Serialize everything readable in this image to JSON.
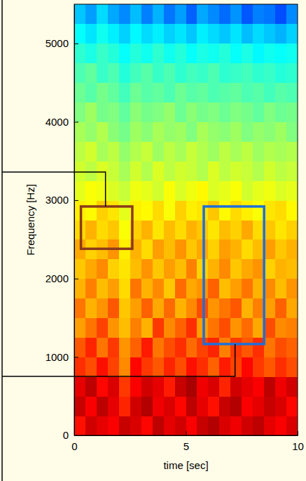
{
  "chart_data": {
    "type": "heatmap",
    "x_label": "time [sec]",
    "y_label": "Frequency [Hz]",
    "xlim": [
      0,
      10
    ],
    "ylim": [
      0,
      5500
    ],
    "xticks": [
      0,
      5,
      10
    ],
    "yticks": [
      0,
      1000,
      2000,
      3000,
      4000,
      5000
    ],
    "clim": [
      0,
      10
    ],
    "x_bins": [
      0,
      0.5,
      1,
      1.5,
      2,
      2.5,
      3,
      3.5,
      4,
      4.5,
      5,
      5.5,
      6,
      6.5,
      7,
      7.5,
      8,
      8.5,
      9,
      9.5,
      10
    ],
    "y_bins": [
      0,
      250,
      500,
      750,
      1000,
      1250,
      1500,
      1750,
      2000,
      2250,
      2500,
      2750,
      3000,
      3250,
      3500,
      3750,
      4000,
      4250,
      4500,
      4750,
      5000,
      5250,
      5500
    ],
    "cells": [
      [
        8.6,
        9.2,
        9.0,
        8.8,
        9.3,
        9.1,
        8.7,
        9.4,
        9.0,
        9.2,
        8.8,
        9.3,
        9.5,
        9.1,
        8.9,
        9.2,
        9.4,
        9.0,
        8.8,
        9.1
      ],
      [
        9.3,
        8.8,
        9.4,
        9.0,
        8.4,
        9.2,
        9.5,
        8.9,
        9.1,
        8.7,
        9.4,
        9.0,
        8.6,
        9.3,
        9.5,
        8.8,
        9.0,
        9.3,
        9.1,
        8.7
      ],
      [
        9.0,
        9.4,
        8.7,
        9.1,
        8.2,
        8.8,
        9.2,
        9.0,
        8.5,
        9.3,
        9.6,
        8.9,
        9.1,
        8.4,
        9.2,
        9.0,
        8.8,
        9.4,
        8.9,
        9.2
      ],
      [
        8.3,
        8.0,
        8.6,
        8.1,
        7.4,
        8.7,
        8.2,
        7.9,
        8.4,
        8.0,
        8.6,
        8.3,
        7.8,
        8.5,
        8.1,
        8.7,
        8.2,
        7.9,
        8.3,
        8.0
      ],
      [
        7.9,
        8.4,
        7.6,
        8.2,
        7.3,
        7.8,
        8.5,
        7.6,
        8.0,
        8.3,
        7.7,
        8.1,
        8.4,
        7.5,
        8.2,
        7.9,
        8.3,
        7.6,
        8.0,
        7.8
      ],
      [
        7.2,
        7.6,
        8.1,
        7.3,
        6.9,
        7.5,
        7.0,
        8.2,
        7.4,
        7.8,
        8.3,
        7.2,
        7.6,
        8.0,
        7.3,
        7.7,
        7.1,
        8.0,
        7.4,
        7.5
      ],
      [
        7.6,
        7.0,
        7.3,
        7.9,
        6.8,
        7.2,
        7.8,
        7.1,
        7.7,
        7.0,
        7.4,
        8.0,
        7.3,
        7.6,
        7.9,
        7.0,
        7.5,
        7.2,
        7.8,
        7.1
      ],
      [
        7.0,
        7.5,
        6.9,
        7.2,
        6.6,
        7.6,
        7.0,
        7.4,
        6.8,
        7.7,
        7.1,
        7.3,
        7.8,
        6.9,
        7.2,
        7.6,
        7.0,
        7.4,
        6.9,
        7.3
      ],
      [
        6.8,
        7.1,
        7.4,
        6.7,
        6.5,
        6.9,
        7.3,
        6.8,
        7.2,
        6.9,
        7.5,
        6.7,
        7.0,
        7.4,
        6.8,
        7.1,
        7.3,
        6.7,
        7.0,
        6.9
      ],
      [
        7.1,
        6.7,
        6.9,
        7.3,
        6.4,
        7.0,
        6.6,
        7.2,
        6.9,
        7.3,
        6.8,
        7.1,
        6.7,
        7.2,
        7.0,
        6.6,
        6.9,
        7.2,
        6.8,
        7.0
      ],
      [
        6.6,
        7.0,
        6.6,
        6.8,
        6.2,
        6.7,
        7.0,
        6.5,
        6.9,
        6.6,
        7.0,
        6.8,
        6.5,
        6.9,
        6.7,
        7.1,
        6.6,
        6.8,
        6.5,
        6.7
      ],
      [
        6.4,
        6.3,
        6.7,
        6.5,
        6.0,
        6.4,
        6.3,
        6.6,
        6.2,
        6.7,
        6.4,
        6.5,
        6.8,
        6.3,
        6.6,
        6.4,
        6.2,
        6.5,
        6.6,
        6.3
      ],
      [
        6.0,
        6.2,
        6.1,
        5.9,
        5.7,
        6.1,
        6.0,
        5.8,
        6.2,
        5.9,
        6.1,
        6.3,
        5.9,
        6.0,
        6.2,
        5.8,
        6.0,
        6.1,
        5.9,
        6.0
      ],
      [
        5.8,
        5.6,
        5.9,
        5.7,
        5.4,
        5.8,
        5.5,
        5.9,
        5.6,
        5.8,
        5.7,
        5.5,
        5.9,
        5.6,
        5.8,
        5.7,
        5.5,
        5.8,
        5.6,
        5.7
      ],
      [
        5.6,
        5.8,
        5.4,
        5.6,
        5.2,
        5.5,
        5.7,
        5.3,
        5.6,
        5.4,
        5.7,
        5.5,
        5.3,
        5.6,
        5.4,
        5.6,
        5.3,
        5.5,
        5.4,
        5.5
      ],
      [
        5.4,
        5.2,
        5.5,
        5.1,
        4.9,
        5.3,
        5.1,
        5.4,
        5.2,
        5.3,
        5.0,
        5.4,
        5.2,
        5.1,
        5.3,
        5.0,
        5.2,
        5.1,
        5.3,
        5.0
      ],
      [
        5.0,
        5.3,
        4.9,
        5.0,
        4.7,
        5.1,
        4.9,
        5.0,
        5.2,
        4.8,
        5.1,
        4.9,
        5.0,
        4.8,
        5.0,
        4.9,
        4.7,
        5.0,
        4.8,
        4.9
      ],
      [
        4.8,
        4.6,
        4.9,
        4.7,
        4.4,
        4.8,
        4.6,
        4.7,
        4.5,
        4.8,
        4.6,
        4.7,
        4.5,
        4.6,
        4.7,
        4.5,
        4.6,
        4.4,
        4.6,
        4.5
      ],
      [
        4.5,
        4.7,
        4.3,
        4.5,
        4.1,
        4.4,
        4.6,
        4.3,
        4.5,
        4.2,
        4.4,
        4.3,
        4.5,
        4.2,
        4.3,
        4.4,
        4.2,
        4.3,
        4.1,
        4.2
      ],
      [
        4.2,
        4.0,
        4.3,
        4.1,
        3.8,
        4.1,
        3.9,
        4.2,
        3.9,
        4.1,
        3.8,
        4.0,
        3.9,
        4.1,
        3.8,
        4.0,
        3.7,
        3.9,
        3.8,
        3.9
      ],
      [
        3.8,
        3.5,
        3.9,
        3.6,
        3.3,
        3.7,
        3.4,
        3.6,
        3.3,
        3.5,
        3.2,
        3.6,
        3.4,
        3.2,
        3.5,
        3.1,
        3.4,
        3.2,
        3.0,
        3.3
      ],
      [
        3.2,
        2.8,
        3.4,
        2.9,
        2.6,
        3.1,
        2.5,
        3.0,
        2.4,
        2.8,
        2.2,
        2.9,
        2.6,
        2.3,
        2.7,
        2.1,
        2.5,
        2.4,
        2.0,
        2.6
      ]
    ],
    "regions": [
      {
        "x": [
          0.3,
          2.6
        ],
        "y": [
          2380,
          2920
        ],
        "color": "#8b3a1a",
        "leader_x": 1.4,
        "leader_y": 3360
      },
      {
        "x": [
          5.8,
          8.5
        ],
        "y": [
          1165,
          2920
        ],
        "color": "#1e6fd9",
        "leader_x": 7.2,
        "leader_y": 753
      }
    ]
  }
}
